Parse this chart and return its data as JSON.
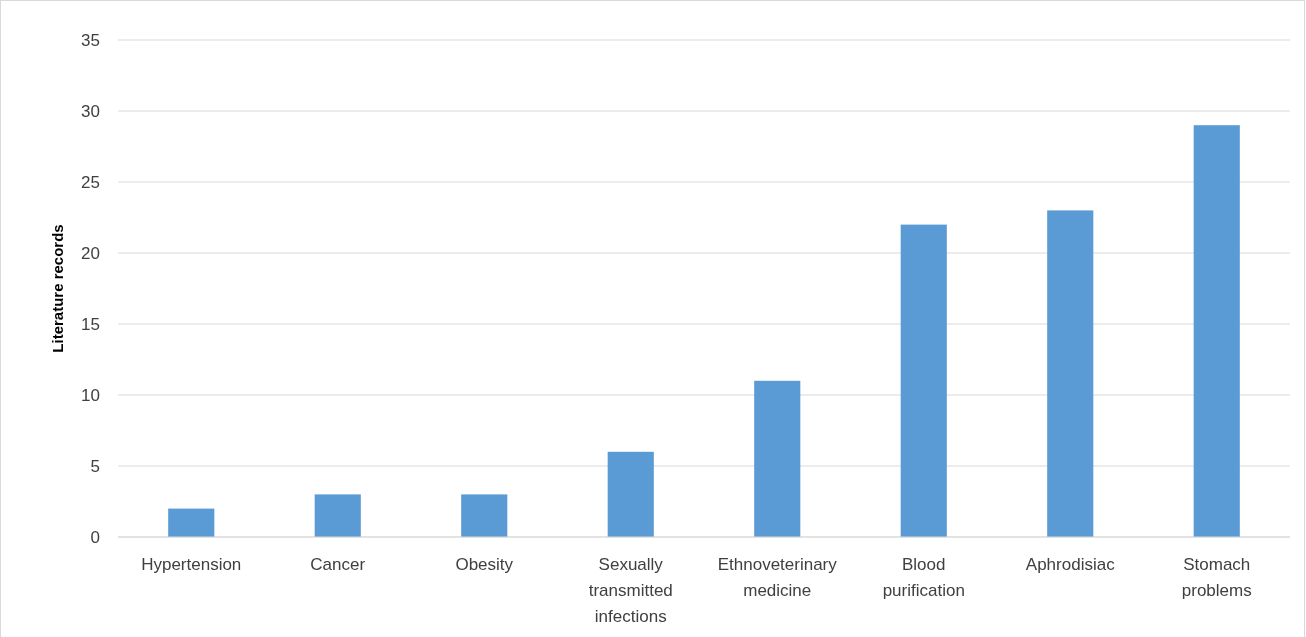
{
  "chart_data": {
    "type": "bar",
    "ylabel": "Literature records",
    "categories": [
      "Hypertension",
      "Cancer",
      "Obesity",
      "Sexually transmitted infections",
      "Ethnoveterinary medicine",
      "Blood purification",
      "Aphrodisiac",
      "Stomach problems"
    ],
    "values": [
      2,
      3,
      3,
      6,
      11,
      22,
      23,
      29
    ],
    "color": "#5b9bd5",
    "ylim": [
      0,
      35
    ],
    "yticks": [
      0,
      5,
      10,
      15,
      20,
      25,
      30,
      35
    ],
    "grid": "y"
  }
}
